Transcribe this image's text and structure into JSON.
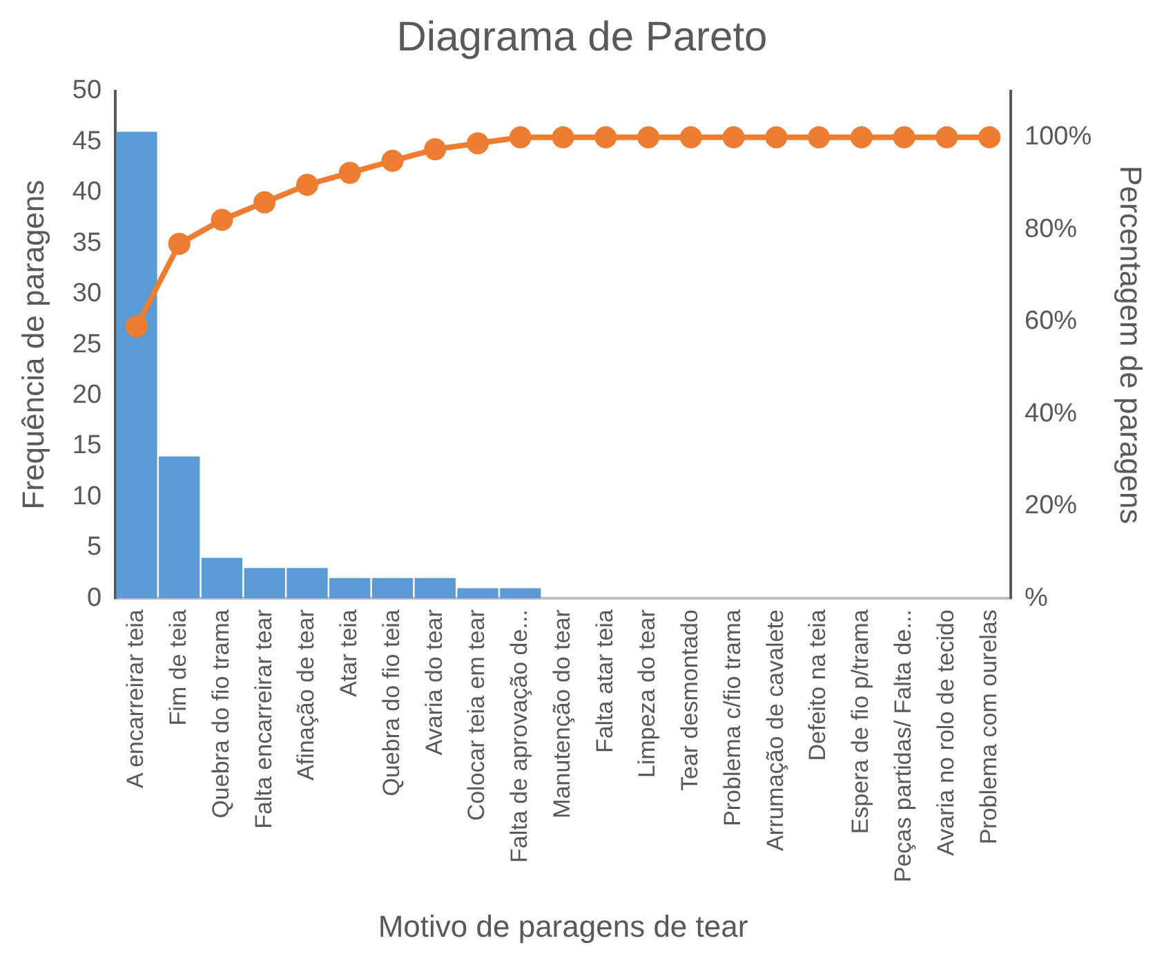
{
  "chart_data": {
    "type": "bar",
    "title": "Diagrama de Pareto",
    "xlabel": "Motivo de paragens de tear",
    "ylabel": "Frequência de paragens",
    "y2label": "Percentagem de paragens",
    "categories": [
      "A encarreirar teia",
      "Fim de teia",
      "Quebra do fio trama",
      "Falta encarreirar tear",
      "Afinação de tear",
      "Atar teia",
      "Quebra do fio teia",
      "Avaria do tear",
      "Colocar teia em tear",
      "Falta de aprovação de...",
      "Manutenção do tear",
      "Falta atar teia",
      "Limpeza do tear",
      "Tear desmontado",
      "Problema c/fio trama",
      "Arrumação de cavalete",
      "Defeito na teia",
      "Espera de fio p/trama",
      "Peças partidas/ Falta de...",
      "Avaria no rolo de tecido",
      "Problema com ourelas"
    ],
    "series": [
      {
        "color": "#5b9bd5",
        "values": [
          46,
          14,
          4,
          3,
          3,
          2,
          2,
          2,
          1,
          1,
          0,
          0,
          0,
          0,
          0,
          0,
          0,
          0,
          0,
          0,
          0
        ]
      },
      {
        "type": "line",
        "axis": "y2",
        "color": "#ed7d31",
        "values": [
          59,
          76.9,
          82.1,
          85.9,
          89.7,
          92.3,
          94.9,
          97.4,
          98.7,
          100,
          100,
          100,
          100,
          100,
          100,
          100,
          100,
          100,
          100,
          100,
          100
        ]
      }
    ],
    "ylim": [
      0,
      50
    ],
    "yticks": [
      0,
      5,
      10,
      15,
      20,
      25,
      30,
      35,
      40,
      45,
      50
    ],
    "y2lim": [
      0,
      110
    ],
    "y2ticks": [
      {
        "value": 0,
        "label": "%"
      },
      {
        "value": 20,
        "label": "20%"
      },
      {
        "value": 40,
        "label": "40%"
      },
      {
        "value": 60,
        "label": "60%"
      },
      {
        "value": 80,
        "label": "80%"
      },
      {
        "value": 100,
        "label": "100%"
      }
    ],
    "marker": "circle",
    "grid": false,
    "legend": false
  }
}
